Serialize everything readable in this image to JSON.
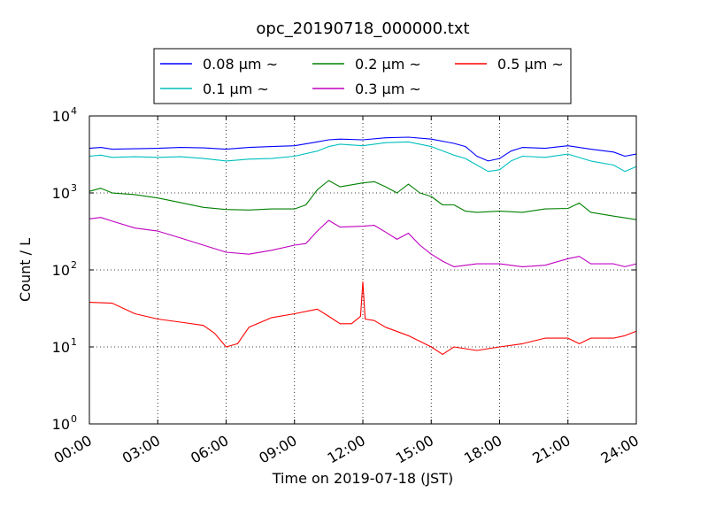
{
  "chart_data": {
    "type": "line",
    "title": "opc_20190718_000000.txt",
    "xlabel": "Time on 2019-07-18 (JST)",
    "ylabel": "Count / L",
    "x_unit": "hours",
    "xlim": [
      0,
      24
    ],
    "ylim": [
      1,
      10000
    ],
    "yscale": "log",
    "grid": true,
    "legend_position": "top",
    "x_ticks": [
      {
        "value": 0,
        "label": "00:00"
      },
      {
        "value": 3,
        "label": "03:00"
      },
      {
        "value": 6,
        "label": "06:00"
      },
      {
        "value": 9,
        "label": "09:00"
      },
      {
        "value": 12,
        "label": "12:00"
      },
      {
        "value": 15,
        "label": "15:00"
      },
      {
        "value": 18,
        "label": "18:00"
      },
      {
        "value": 21,
        "label": "21:00"
      },
      {
        "value": 24,
        "label": "24:00"
      }
    ],
    "y_ticks": [
      {
        "value": 1,
        "base": "10",
        "exp": "0"
      },
      {
        "value": 10,
        "base": "10",
        "exp": "1"
      },
      {
        "value": 100,
        "base": "10",
        "exp": "2"
      },
      {
        "value": 1000,
        "base": "10",
        "exp": "3"
      },
      {
        "value": 10000,
        "base": "10",
        "exp": "4"
      }
    ],
    "series": [
      {
        "name": "0.08 μm ~",
        "color": "#0000ff",
        "points": [
          [
            0,
            3800
          ],
          [
            0.5,
            3900
          ],
          [
            1,
            3700
          ],
          [
            2,
            3750
          ],
          [
            3,
            3800
          ],
          [
            4,
            3900
          ],
          [
            5,
            3850
          ],
          [
            6,
            3700
          ],
          [
            7,
            3900
          ],
          [
            8,
            4000
          ],
          [
            9,
            4100
          ],
          [
            10,
            4600
          ],
          [
            10.5,
            4900
          ],
          [
            11,
            5000
          ],
          [
            12,
            4900
          ],
          [
            13,
            5200
          ],
          [
            14,
            5300
          ],
          [
            15,
            5000
          ],
          [
            16,
            4400
          ],
          [
            16.5,
            4000
          ],
          [
            17,
            3000
          ],
          [
            17.5,
            2600
          ],
          [
            18,
            2800
          ],
          [
            18.5,
            3500
          ],
          [
            19,
            3900
          ],
          [
            20,
            3800
          ],
          [
            21,
            4100
          ],
          [
            22,
            3700
          ],
          [
            23,
            3400
          ],
          [
            23.5,
            3000
          ],
          [
            24,
            3200
          ]
        ]
      },
      {
        "name": "0.1 μm ~",
        "color": "#00bfbf",
        "points": [
          [
            0,
            3000
          ],
          [
            0.5,
            3100
          ],
          [
            1,
            2900
          ],
          [
            2,
            2950
          ],
          [
            3,
            2900
          ],
          [
            4,
            2950
          ],
          [
            5,
            2800
          ],
          [
            6,
            2600
          ],
          [
            7,
            2750
          ],
          [
            8,
            2800
          ],
          [
            9,
            3000
          ],
          [
            10,
            3500
          ],
          [
            10.5,
            4000
          ],
          [
            11,
            4300
          ],
          [
            12,
            4100
          ],
          [
            13,
            4500
          ],
          [
            14,
            4600
          ],
          [
            15,
            4000
          ],
          [
            16,
            3100
          ],
          [
            16.5,
            2800
          ],
          [
            17,
            2300
          ],
          [
            17.5,
            1900
          ],
          [
            18,
            2000
          ],
          [
            18.5,
            2600
          ],
          [
            19,
            3000
          ],
          [
            20,
            2900
          ],
          [
            21,
            3200
          ],
          [
            22,
            2600
          ],
          [
            23,
            2300
          ],
          [
            23.5,
            1900
          ],
          [
            24,
            2200
          ]
        ]
      },
      {
        "name": "0.2 μm ~",
        "color": "#008000",
        "points": [
          [
            0,
            1050
          ],
          [
            0.5,
            1150
          ],
          [
            1,
            1000
          ],
          [
            2,
            950
          ],
          [
            3,
            860
          ],
          [
            4,
            750
          ],
          [
            5,
            650
          ],
          [
            6,
            610
          ],
          [
            7,
            600
          ],
          [
            8,
            620
          ],
          [
            9,
            620
          ],
          [
            9.5,
            700
          ],
          [
            10,
            1100
          ],
          [
            10.5,
            1450
          ],
          [
            11,
            1200
          ],
          [
            12,
            1350
          ],
          [
            12.5,
            1400
          ],
          [
            13,
            1200
          ],
          [
            13.5,
            1000
          ],
          [
            14,
            1300
          ],
          [
            14.5,
            1000
          ],
          [
            15,
            900
          ],
          [
            15.5,
            700
          ],
          [
            16,
            700
          ],
          [
            16.5,
            580
          ],
          [
            17,
            560
          ],
          [
            18,
            580
          ],
          [
            19,
            560
          ],
          [
            20,
            620
          ],
          [
            21,
            630
          ],
          [
            21.5,
            740
          ],
          [
            22,
            560
          ],
          [
            23,
            500
          ],
          [
            24,
            450
          ]
        ]
      },
      {
        "name": "0.3 μm ~",
        "color": "#bf00bf",
        "points": [
          [
            0,
            460
          ],
          [
            0.5,
            480
          ],
          [
            1,
            430
          ],
          [
            2,
            350
          ],
          [
            3,
            320
          ],
          [
            4,
            260
          ],
          [
            5,
            210
          ],
          [
            6,
            170
          ],
          [
            7,
            160
          ],
          [
            8,
            180
          ],
          [
            9,
            210
          ],
          [
            9.5,
            220
          ],
          [
            10,
            320
          ],
          [
            10.5,
            440
          ],
          [
            11,
            360
          ],
          [
            12,
            370
          ],
          [
            12.5,
            380
          ],
          [
            13,
            310
          ],
          [
            13.5,
            250
          ],
          [
            14,
            300
          ],
          [
            14.5,
            210
          ],
          [
            15,
            160
          ],
          [
            15.5,
            130
          ],
          [
            16,
            110
          ],
          [
            17,
            120
          ],
          [
            18,
            120
          ],
          [
            19,
            110
          ],
          [
            20,
            115
          ],
          [
            21,
            140
          ],
          [
            21.5,
            150
          ],
          [
            22,
            120
          ],
          [
            23,
            120
          ],
          [
            23.5,
            110
          ],
          [
            24,
            120
          ]
        ]
      },
      {
        "name": "0.5 μm ~",
        "color": "#ff0000",
        "points": [
          [
            0,
            38
          ],
          [
            1,
            37
          ],
          [
            2,
            27
          ],
          [
            3,
            23
          ],
          [
            4,
            21
          ],
          [
            5,
            19
          ],
          [
            5.5,
            15
          ],
          [
            6,
            10
          ],
          [
            6.5,
            11
          ],
          [
            7,
            18
          ],
          [
            8,
            24
          ],
          [
            9,
            27
          ],
          [
            10,
            31
          ],
          [
            10.5,
            25
          ],
          [
            11,
            20
          ],
          [
            11.5,
            20
          ],
          [
            11.9,
            25
          ],
          [
            12.0,
            70
          ],
          [
            12.1,
            23
          ],
          [
            12.5,
            22
          ],
          [
            13,
            18
          ],
          [
            14,
            14
          ],
          [
            15,
            10
          ],
          [
            15.5,
            8
          ],
          [
            16,
            10
          ],
          [
            17,
            9
          ],
          [
            18,
            10
          ],
          [
            19,
            11
          ],
          [
            20,
            13
          ],
          [
            21,
            13
          ],
          [
            21.5,
            11
          ],
          [
            22,
            13
          ],
          [
            23,
            13
          ],
          [
            23.5,
            14
          ],
          [
            24,
            16
          ]
        ]
      }
    ]
  }
}
